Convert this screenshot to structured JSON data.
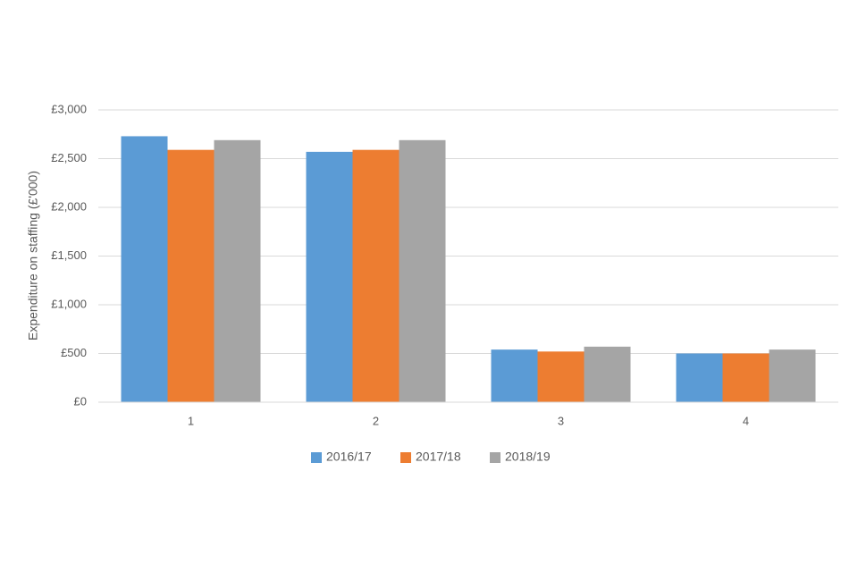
{
  "chart_data": {
    "type": "bar",
    "y_label": "Expenditure on staffing (£'000)",
    "categories": [
      "1",
      "2",
      "3",
      "4"
    ],
    "series": [
      {
        "name": "2016/17",
        "color": "#5b9bd5",
        "values": [
          2730,
          2570,
          540,
          500
        ]
      },
      {
        "name": "2017/18",
        "color": "#ed7d31",
        "values": [
          2590,
          2590,
          520,
          500
        ]
      },
      {
        "name": "2018/19",
        "color": "#a5a5a5",
        "values": [
          2690,
          2690,
          570,
          540
        ]
      }
    ],
    "ylim": [
      0,
      3000
    ],
    "yticks": [
      {
        "value": 0,
        "label": "£0"
      },
      {
        "value": 500,
        "label": "£500"
      },
      {
        "value": 1000,
        "label": "£1,000"
      },
      {
        "value": 1500,
        "label": "£1,500"
      },
      {
        "value": 2000,
        "label": "£2,000"
      },
      {
        "value": 2500,
        "label": "£2,500"
      },
      {
        "value": 3000,
        "label": "£3,000"
      }
    ],
    "grid": true,
    "legend": "bottom"
  }
}
